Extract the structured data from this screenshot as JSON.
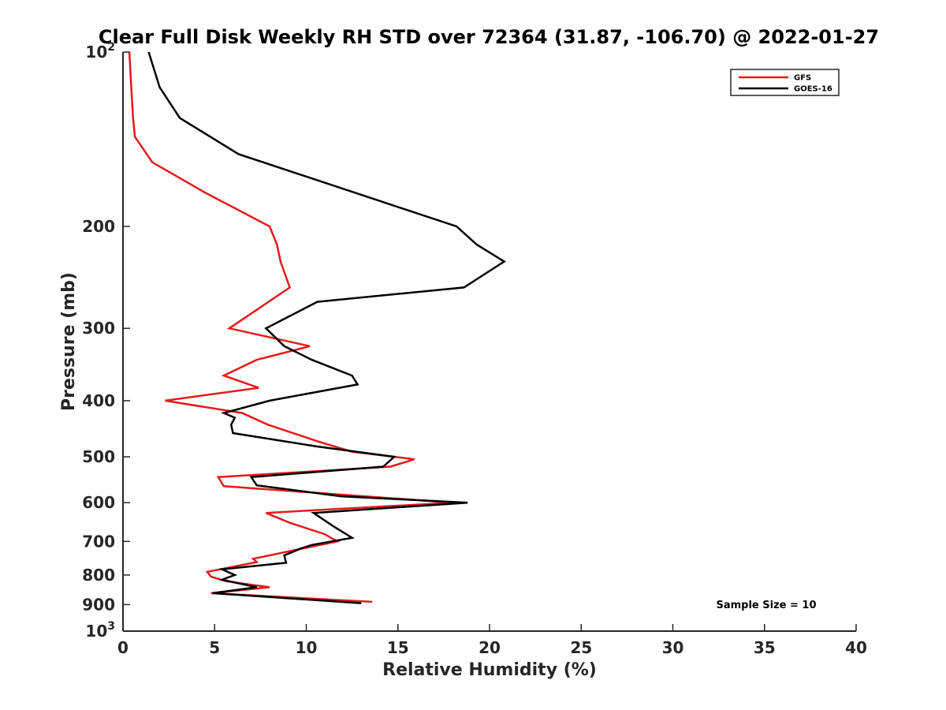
{
  "chart_data": {
    "type": "line",
    "title": "Clear Full Disk Weekly RH STD over 72364 (31.87, -106.70) @ 2022-01-27",
    "xlabel": "Relative Humidity (%)",
    "ylabel": "Pressure (mb)",
    "xlim": [
      0,
      40
    ],
    "ylim": [
      100,
      1000
    ],
    "y_scale": "log",
    "y_reversed": true,
    "grid": false,
    "legend_position": "top-right",
    "x_ticks": [
      0,
      5,
      10,
      15,
      20,
      25,
      30,
      35,
      40
    ],
    "x_tick_labels": [
      "0",
      "5",
      "10",
      "15",
      "20",
      "25",
      "30",
      "35",
      "40"
    ],
    "y_ticks": [
      100,
      200,
      300,
      400,
      500,
      600,
      700,
      800,
      900,
      1000
    ],
    "y_tick_labels": [
      {
        "base": "10",
        "exp": "2"
      },
      {
        "base": "200",
        "exp": ""
      },
      {
        "base": "300",
        "exp": ""
      },
      {
        "base": "400",
        "exp": ""
      },
      {
        "base": "500",
        "exp": ""
      },
      {
        "base": "600",
        "exp": ""
      },
      {
        "base": "700",
        "exp": ""
      },
      {
        "base": "800",
        "exp": ""
      },
      {
        "base": "900",
        "exp": ""
      },
      {
        "base": "10",
        "exp": "3"
      }
    ],
    "annotation": "Sample Size = 10",
    "series": [
      {
        "name": "GFS",
        "color": "#e41a1c",
        "points": [
          [
            0.35,
            100
          ],
          [
            0.45,
            115
          ],
          [
            0.55,
            130
          ],
          [
            0.65,
            140
          ],
          [
            1.6,
            155
          ],
          [
            4.5,
            175
          ],
          [
            8.0,
            200
          ],
          [
            8.4,
            215
          ],
          [
            8.6,
            230
          ],
          [
            9.1,
            255
          ],
          [
            5.8,
            300
          ],
          [
            10.2,
            322
          ],
          [
            7.3,
            340
          ],
          [
            5.5,
            362
          ],
          [
            7.4,
            380
          ],
          [
            2.3,
            400
          ],
          [
            6.5,
            420
          ],
          [
            7.9,
            440
          ],
          [
            10.6,
            470
          ],
          [
            12.5,
            490
          ],
          [
            15.9,
            505
          ],
          [
            14.6,
            520
          ],
          [
            5.2,
            542
          ],
          [
            5.5,
            562
          ],
          [
            18.0,
            600
          ],
          [
            7.8,
            625
          ],
          [
            9.1,
            650
          ],
          [
            11.0,
            680
          ],
          [
            11.7,
            700
          ],
          [
            9.8,
            720
          ],
          [
            7.1,
            750
          ],
          [
            7.3,
            760
          ],
          [
            4.6,
            790
          ],
          [
            4.8,
            805
          ],
          [
            5.6,
            820
          ],
          [
            8.0,
            840
          ],
          [
            4.8,
            860
          ],
          [
            13.6,
            890
          ]
        ]
      },
      {
        "name": "GOES-16",
        "color": "#000000",
        "points": [
          [
            1.4,
            100
          ],
          [
            2.0,
            115
          ],
          [
            3.1,
            130
          ],
          [
            6.3,
            150
          ],
          [
            18.2,
            200
          ],
          [
            19.3,
            215
          ],
          [
            20.8,
            230
          ],
          [
            18.6,
            255
          ],
          [
            10.6,
            270
          ],
          [
            7.8,
            300
          ],
          [
            8.8,
            322
          ],
          [
            10.3,
            340
          ],
          [
            12.5,
            362
          ],
          [
            12.8,
            375
          ],
          [
            8.0,
            400
          ],
          [
            5.5,
            420
          ],
          [
            6.1,
            428
          ],
          [
            5.9,
            440
          ],
          [
            6.0,
            455
          ],
          [
            10.6,
            480
          ],
          [
            14.8,
            500
          ],
          [
            14.2,
            520
          ],
          [
            7.0,
            542
          ],
          [
            7.3,
            560
          ],
          [
            11.9,
            585
          ],
          [
            18.8,
            600
          ],
          [
            10.4,
            625
          ],
          [
            11.5,
            660
          ],
          [
            12.5,
            690
          ],
          [
            10.3,
            710
          ],
          [
            9.7,
            720
          ],
          [
            8.8,
            740
          ],
          [
            8.9,
            762
          ],
          [
            5.4,
            782
          ],
          [
            6.1,
            800
          ],
          [
            5.4,
            815
          ],
          [
            7.3,
            840
          ],
          [
            4.9,
            860
          ],
          [
            13.0,
            895
          ]
        ]
      }
    ]
  }
}
